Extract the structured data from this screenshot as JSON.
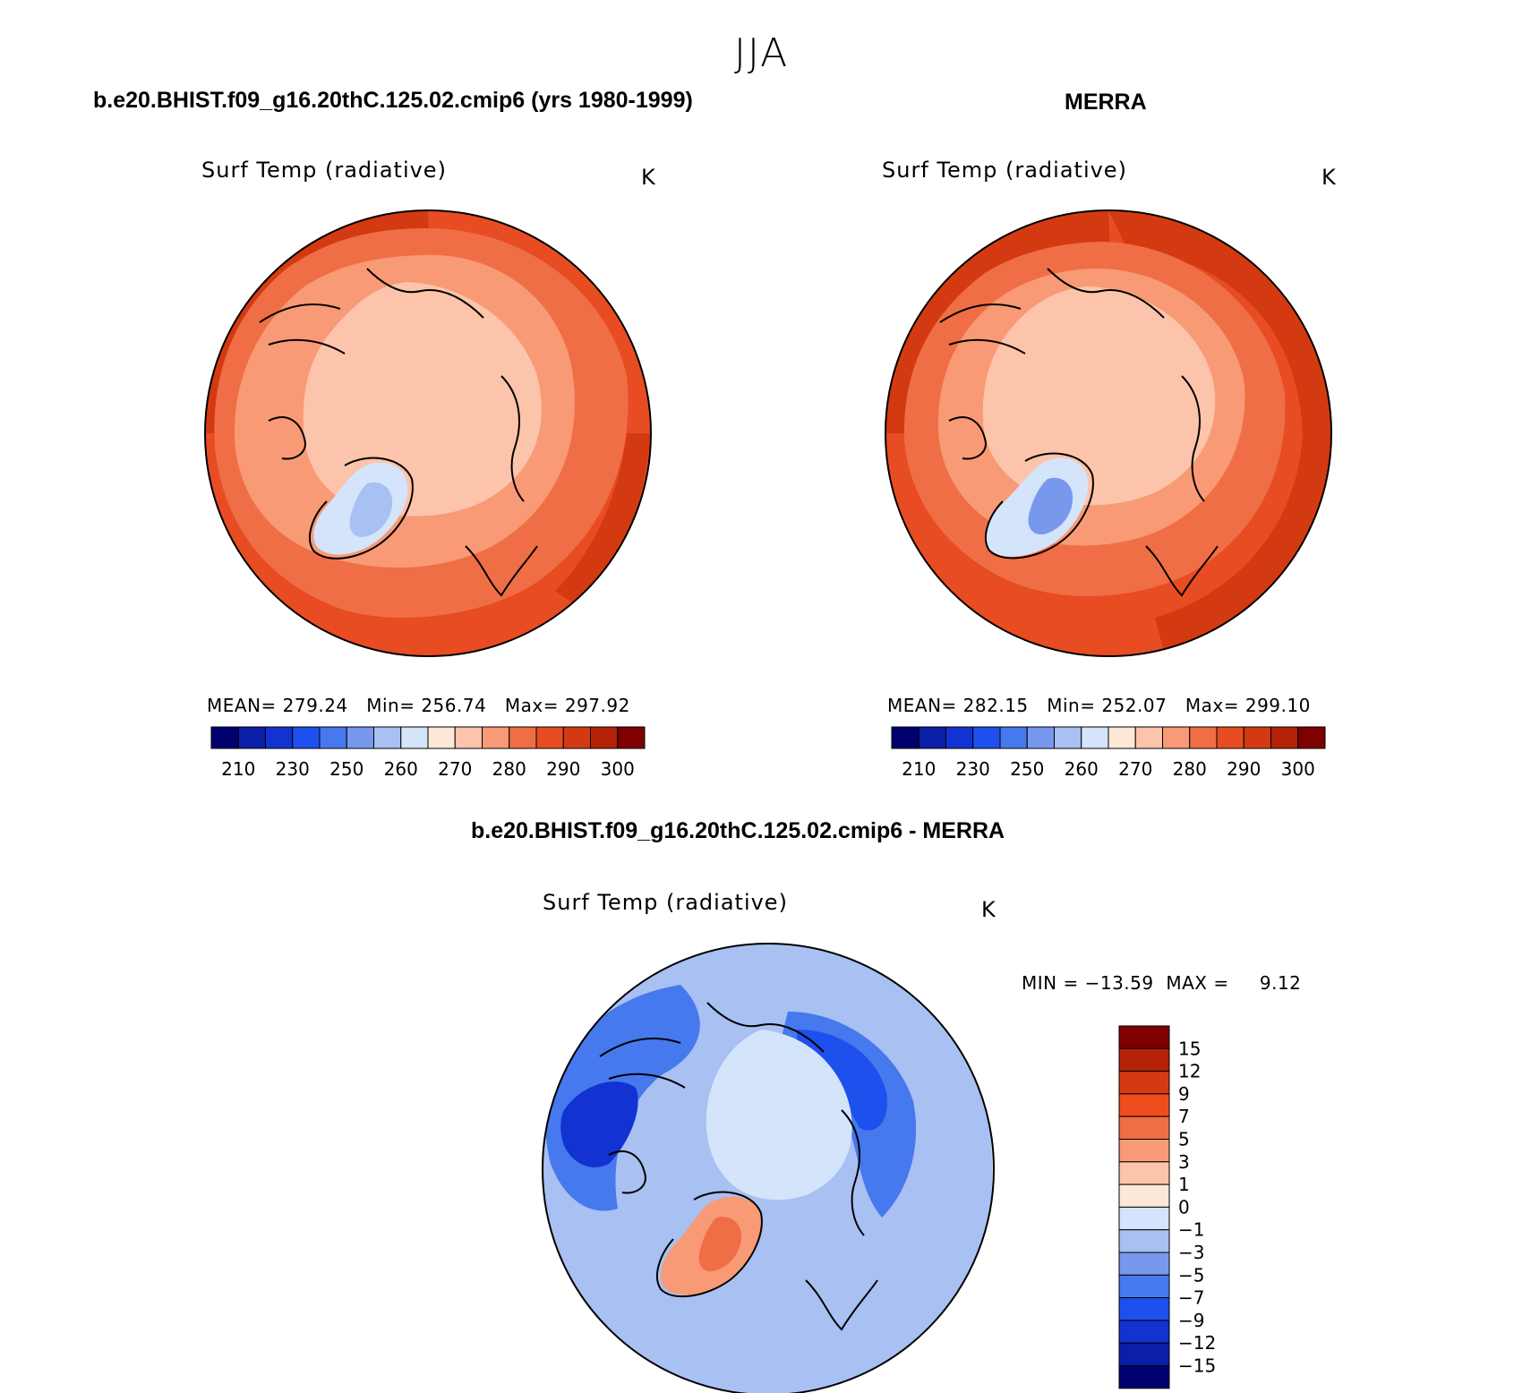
{
  "figure": {
    "season_title": "JJA",
    "diff_title": "b.e20.BHIST.f09_g16.20thC.125.02.cmip6 - MERRA"
  },
  "panels": [
    {
      "id": "model",
      "case_title": "b.e20.BHIST.f09_g16.20thC.125.02.cmip6 (yrs 1980-1999)",
      "variable_title": "Surf Temp (radiative)",
      "units": "K",
      "stats": {
        "mean_label": "MEAN=",
        "mean": "279.24",
        "min_label": "Min=",
        "min": "256.74",
        "max_label": "Max=",
        "max": "297.92"
      }
    },
    {
      "id": "obs",
      "case_title": "MERRA",
      "variable_title": "Surf Temp (radiative)",
      "units": "K",
      "stats": {
        "mean_label": "MEAN=",
        "mean": "282.15",
        "min_label": "Min=",
        "min": "252.07",
        "max_label": "Max=",
        "max": "299.10"
      }
    },
    {
      "id": "diff",
      "variable_title": "Surf Temp (radiative)",
      "units": "K",
      "stats_text": "MIN = −13.59  MAX =     9.12"
    }
  ],
  "colorbar_abs": {
    "colors": [
      "#00006e",
      "#0a1ea8",
      "#1232d2",
      "#1e50ee",
      "#4678ee",
      "#7898ee",
      "#a8c0f2",
      "#d4e4fa",
      "#fde8d8",
      "#fcc4aa",
      "#f89a76",
      "#f06e46",
      "#e84c22",
      "#d43a12",
      "#b42208",
      "#7e0000"
    ],
    "tick_labels": [
      "210",
      "230",
      "250",
      "260",
      "270",
      "280",
      "290",
      "300"
    ]
  },
  "colorbar_diff": {
    "colors": [
      "#7e0000",
      "#b42208",
      "#d43a12",
      "#f04c1e",
      "#f06e46",
      "#f89a76",
      "#fcc4aa",
      "#fde8d8",
      "#d4e4fa",
      "#a8c0f2",
      "#7898ee",
      "#4678ee",
      "#1e50ee",
      "#1232d2",
      "#0a1ea8",
      "#00006e"
    ],
    "tick_labels": [
      "15",
      "12",
      "9",
      "7",
      "5",
      "3",
      "1",
      "0",
      "−1",
      "−3",
      "−5",
      "−7",
      "−9",
      "−12",
      "−15"
    ]
  }
}
